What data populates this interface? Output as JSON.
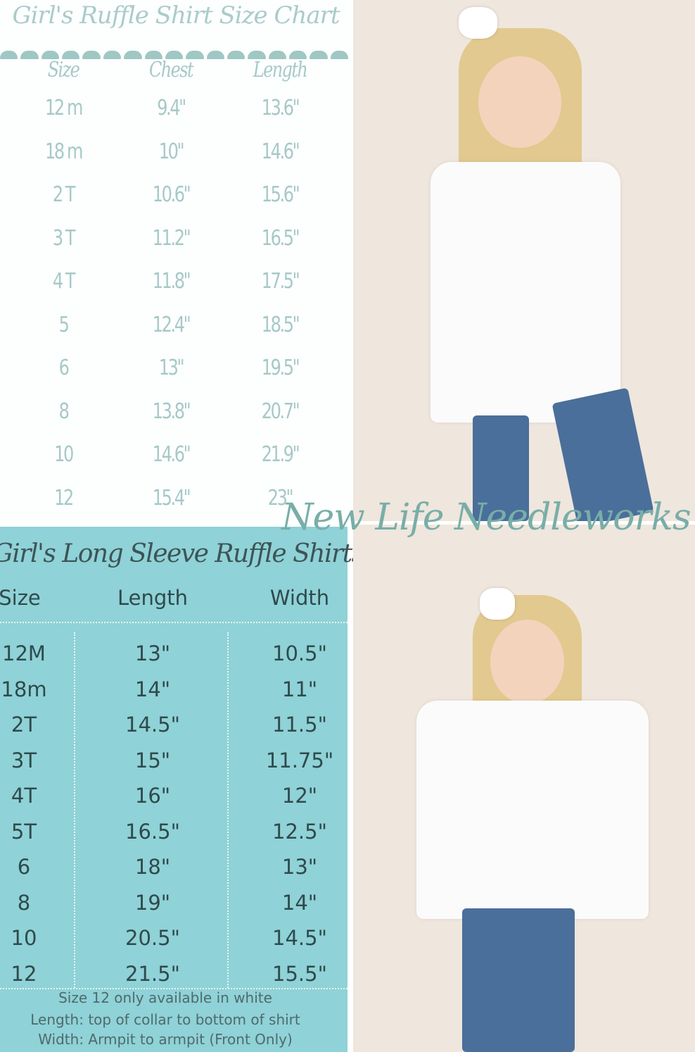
{
  "ruffle_chart": {
    "title": "Girl's Ruffle Shirt Size Chart",
    "headers": [
      "Size",
      "Chest",
      "Length"
    ],
    "rows": [
      [
        "12 m",
        "9.4\"",
        "13.6\""
      ],
      [
        "18 m",
        "10\"",
        "14.6\""
      ],
      [
        "2 T",
        "10.6\"",
        "15.6\""
      ],
      [
        "3 T",
        "11.2\"",
        "16.5\""
      ],
      [
        "4 T",
        "11.8\"",
        "17.5\""
      ],
      [
        "5",
        "12.4\"",
        "18.5\""
      ],
      [
        "6",
        "13\"",
        "19.5\""
      ],
      [
        "8",
        "13.8\"",
        "20.7\""
      ],
      [
        "10",
        "14.6\"",
        "21.9\""
      ],
      [
        "12",
        "15.4\"",
        "23\""
      ]
    ]
  },
  "long_sleeve_chart": {
    "title": "Girl's Long Sleeve Ruffle Shirts",
    "headers": [
      "Size",
      "Length",
      "Width"
    ],
    "rows": [
      [
        "12M",
        "13\"",
        "10.5\""
      ],
      [
        "18m",
        "14\"",
        "11\""
      ],
      [
        "2T",
        "14.5\"",
        "11.5\""
      ],
      [
        "3T",
        "15\"",
        "11.75\""
      ],
      [
        "4T",
        "16\"",
        "12\""
      ],
      [
        "5T",
        "16.5\"",
        "12.5\""
      ],
      [
        "6",
        "18\"",
        "13\""
      ],
      [
        "8",
        "19\"",
        "14\""
      ],
      [
        "10",
        "20.5\"",
        "14.5\""
      ],
      [
        "12",
        "21.5\"",
        "15.5\""
      ]
    ],
    "notes": [
      "Size 12 only available in white",
      "Length: top of collar to bottom of shirt",
      "Width: Armpit to armpit (Front Only)"
    ],
    "background_color": "#8fd2d7"
  },
  "watermark": "New Life Needleworks",
  "colors": {
    "watermark": "#78aea8",
    "chart1_text": "#a6c9c7",
    "photo_bg": "#efe6dd"
  }
}
